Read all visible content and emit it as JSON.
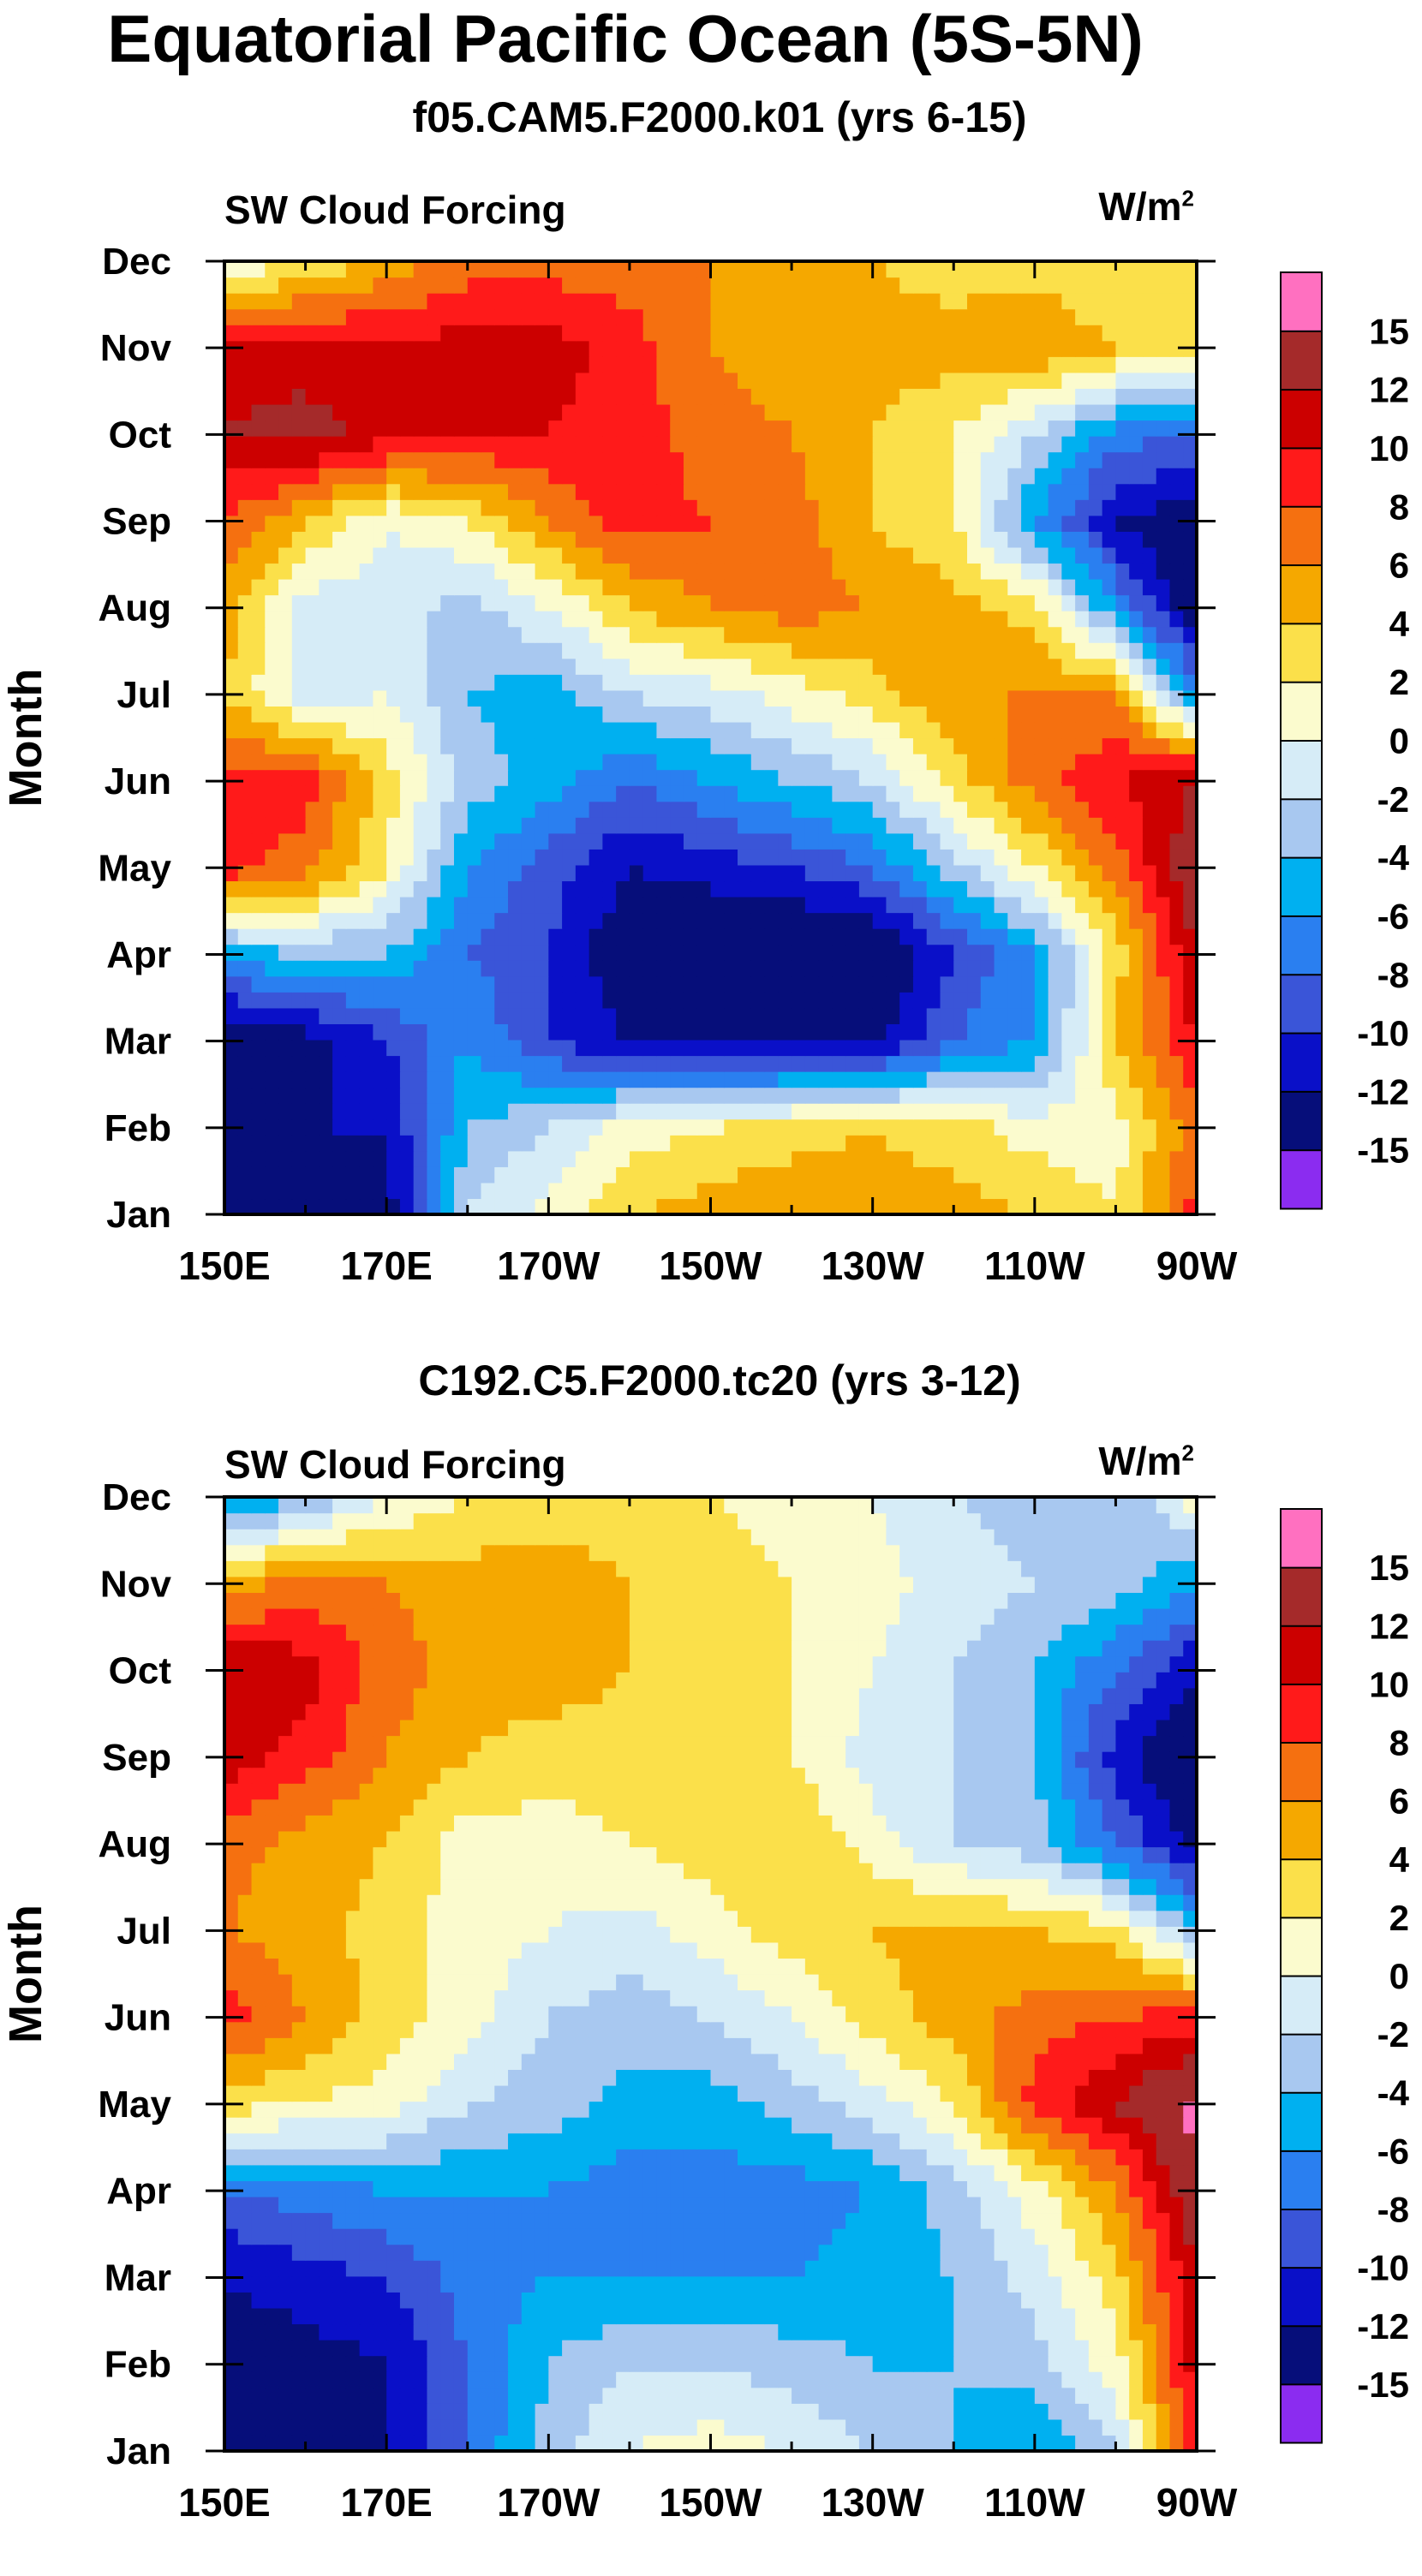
{
  "title": "Equatorial Pacific Ocean (5S-5N)",
  "chart_data": [
    {
      "type": "heatmap",
      "panel_title": "f05.CAM5.F2000.k01 (yrs 6-15)",
      "left_string": "SW Cloud Forcing",
      "units_base": "W/m",
      "units_exp": "2",
      "ylabel": "Month",
      "x_ticks": [
        "150E",
        "170E",
        "170W",
        "150W",
        "130W",
        "110W",
        "90W"
      ],
      "y_ticks": [
        "Jan",
        "Feb",
        "Mar",
        "Apr",
        "May",
        "Jun",
        "Jul",
        "Aug",
        "Sep",
        "Oct",
        "Nov",
        "Dec"
      ],
      "colorbar_labels": [
        "-15",
        "-12",
        "-10",
        "-8",
        "-6",
        "-4",
        "-2",
        "0",
        "2",
        "4",
        "6",
        "8",
        "10",
        "12",
        "15"
      ],
      "x_lon": [
        150,
        160,
        170,
        180,
        190,
        200,
        210,
        220,
        230,
        240,
        250,
        260,
        270
      ],
      "values": [
        [
          -13,
          -12,
          -13,
          -2,
          1,
          4,
          5,
          6,
          5,
          5,
          4,
          2,
          9
        ],
        [
          -14,
          -12,
          -12,
          -4,
          -2,
          1,
          2,
          3,
          4,
          3,
          1,
          1,
          7
        ],
        [
          -15,
          -13,
          -10,
          -6,
          -10,
          -12,
          -13,
          -13,
          -13,
          -8,
          -6,
          4,
          10
        ],
        [
          -5,
          -4,
          -4,
          -8,
          -10,
          -14,
          -15,
          -15,
          -15,
          -10,
          -6,
          3,
          12
        ],
        [
          9,
          7,
          2,
          -6,
          -9,
          -12,
          -11,
          -10,
          -8,
          -3,
          2,
          7,
          14
        ],
        [
          9,
          9,
          3,
          -3,
          -5,
          -8,
          -6,
          -4,
          -2,
          3,
          7,
          10,
          12
        ],
        [
          4,
          -1,
          0,
          -4,
          -5,
          -2,
          -1,
          1,
          3,
          6,
          6,
          6,
          -6
        ],
        [
          5,
          -1,
          -1,
          -3,
          0,
          4,
          6,
          7,
          6,
          5,
          3,
          -6,
          -15
        ],
        [
          8,
          4,
          0,
          2,
          6,
          9,
          8,
          7,
          4,
          2,
          -6,
          -12,
          -14
        ],
        [
          12,
          13,
          11,
          10,
          10,
          9,
          7,
          6,
          4,
          2,
          -2,
          -7,
          -8
        ],
        [
          11,
          11,
          10,
          11,
          11,
          9,
          6,
          5,
          5,
          5,
          6,
          4,
          2
        ],
        [
          0,
          2,
          5,
          7,
          7,
          7,
          6,
          5,
          4,
          3,
          3,
          2,
          3
        ]
      ]
    },
    {
      "type": "heatmap",
      "panel_title": "C192.C5.F2000.tc20 (yrs 3-12)",
      "left_string": "SW Cloud Forcing",
      "units_base": "W/m",
      "units_exp": "2",
      "ylabel": "Month",
      "x_ticks": [
        "150E",
        "170E",
        "170W",
        "150W",
        "130W",
        "110W",
        "90W"
      ],
      "y_ticks": [
        "Jan",
        "Feb",
        "Mar",
        "Apr",
        "May",
        "Jun",
        "Jul",
        "Aug",
        "Sep",
        "Oct",
        "Nov",
        "Dec"
      ],
      "colorbar_labels": [
        "-15",
        "-12",
        "-10",
        "-8",
        "-6",
        "-4",
        "-2",
        "0",
        "2",
        "4",
        "6",
        "8",
        "10",
        "12",
        "15"
      ],
      "x_lon": [
        150,
        160,
        170,
        180,
        190,
        200,
        210,
        220,
        230,
        240,
        250,
        260,
        270
      ],
      "values": [
        [
          -12,
          -13,
          -12,
          -8,
          -3,
          0,
          1,
          0,
          -2,
          -4,
          -6,
          -2,
          10
        ],
        [
          -13,
          -13,
          -12,
          -8,
          -4,
          -2,
          -2,
          -3,
          -4,
          -4,
          -3,
          1,
          11
        ],
        [
          -12,
          -11,
          -10,
          -7,
          -6,
          -6,
          -6,
          -6,
          -5,
          -4,
          -1,
          3,
          12
        ],
        [
          -8,
          -7,
          -6,
          -6,
          -6,
          -7,
          -7,
          -7,
          -6,
          -3,
          1,
          6,
          14
        ],
        [
          3,
          2,
          1,
          -2,
          -3,
          -5,
          -5,
          -3,
          -1,
          2,
          9,
          12,
          16
        ],
        [
          9,
          6,
          3,
          1,
          -2,
          -3,
          -2,
          0,
          3,
          5,
          7,
          8,
          9
        ],
        [
          6,
          5,
          3,
          1,
          0,
          -1,
          1,
          3,
          4,
          5,
          4,
          3,
          -4
        ],
        [
          7,
          5,
          4,
          1,
          1,
          2,
          3,
          4,
          1,
          -2,
          -3,
          -8,
          -13
        ],
        [
          11,
          9,
          6,
          4,
          3,
          3,
          3,
          2,
          -1,
          -2,
          -4,
          -11,
          -15
        ],
        [
          12,
          11,
          7,
          5,
          5,
          4,
          3,
          2,
          0,
          -2,
          -4,
          -8,
          -12
        ],
        [
          5,
          7,
          6,
          5,
          5,
          4,
          3,
          2,
          1,
          -1,
          -2,
          -3,
          -6
        ],
        [
          -7,
          -4,
          0,
          2,
          3,
          3,
          2,
          1,
          0,
          -2,
          -3,
          -4,
          1
        ]
      ]
    }
  ],
  "levels": [
    -15,
    -12,
    -10,
    -8,
    -6,
    -4,
    -2,
    0,
    2,
    4,
    6,
    8,
    10,
    12,
    15
  ],
  "colors": [
    "#8b2cf0",
    "#060e7a",
    "#0a10c8",
    "#3a55d8",
    "#2a7ff0",
    "#00b0f0",
    "#a8c8f0",
    "#d6ecf7",
    "#fbfbce",
    "#fbe04a",
    "#f5a800",
    "#f57010",
    "#ff1a1a",
    "#cc0000",
    "#a52a2a",
    "#ff70c0"
  ]
}
